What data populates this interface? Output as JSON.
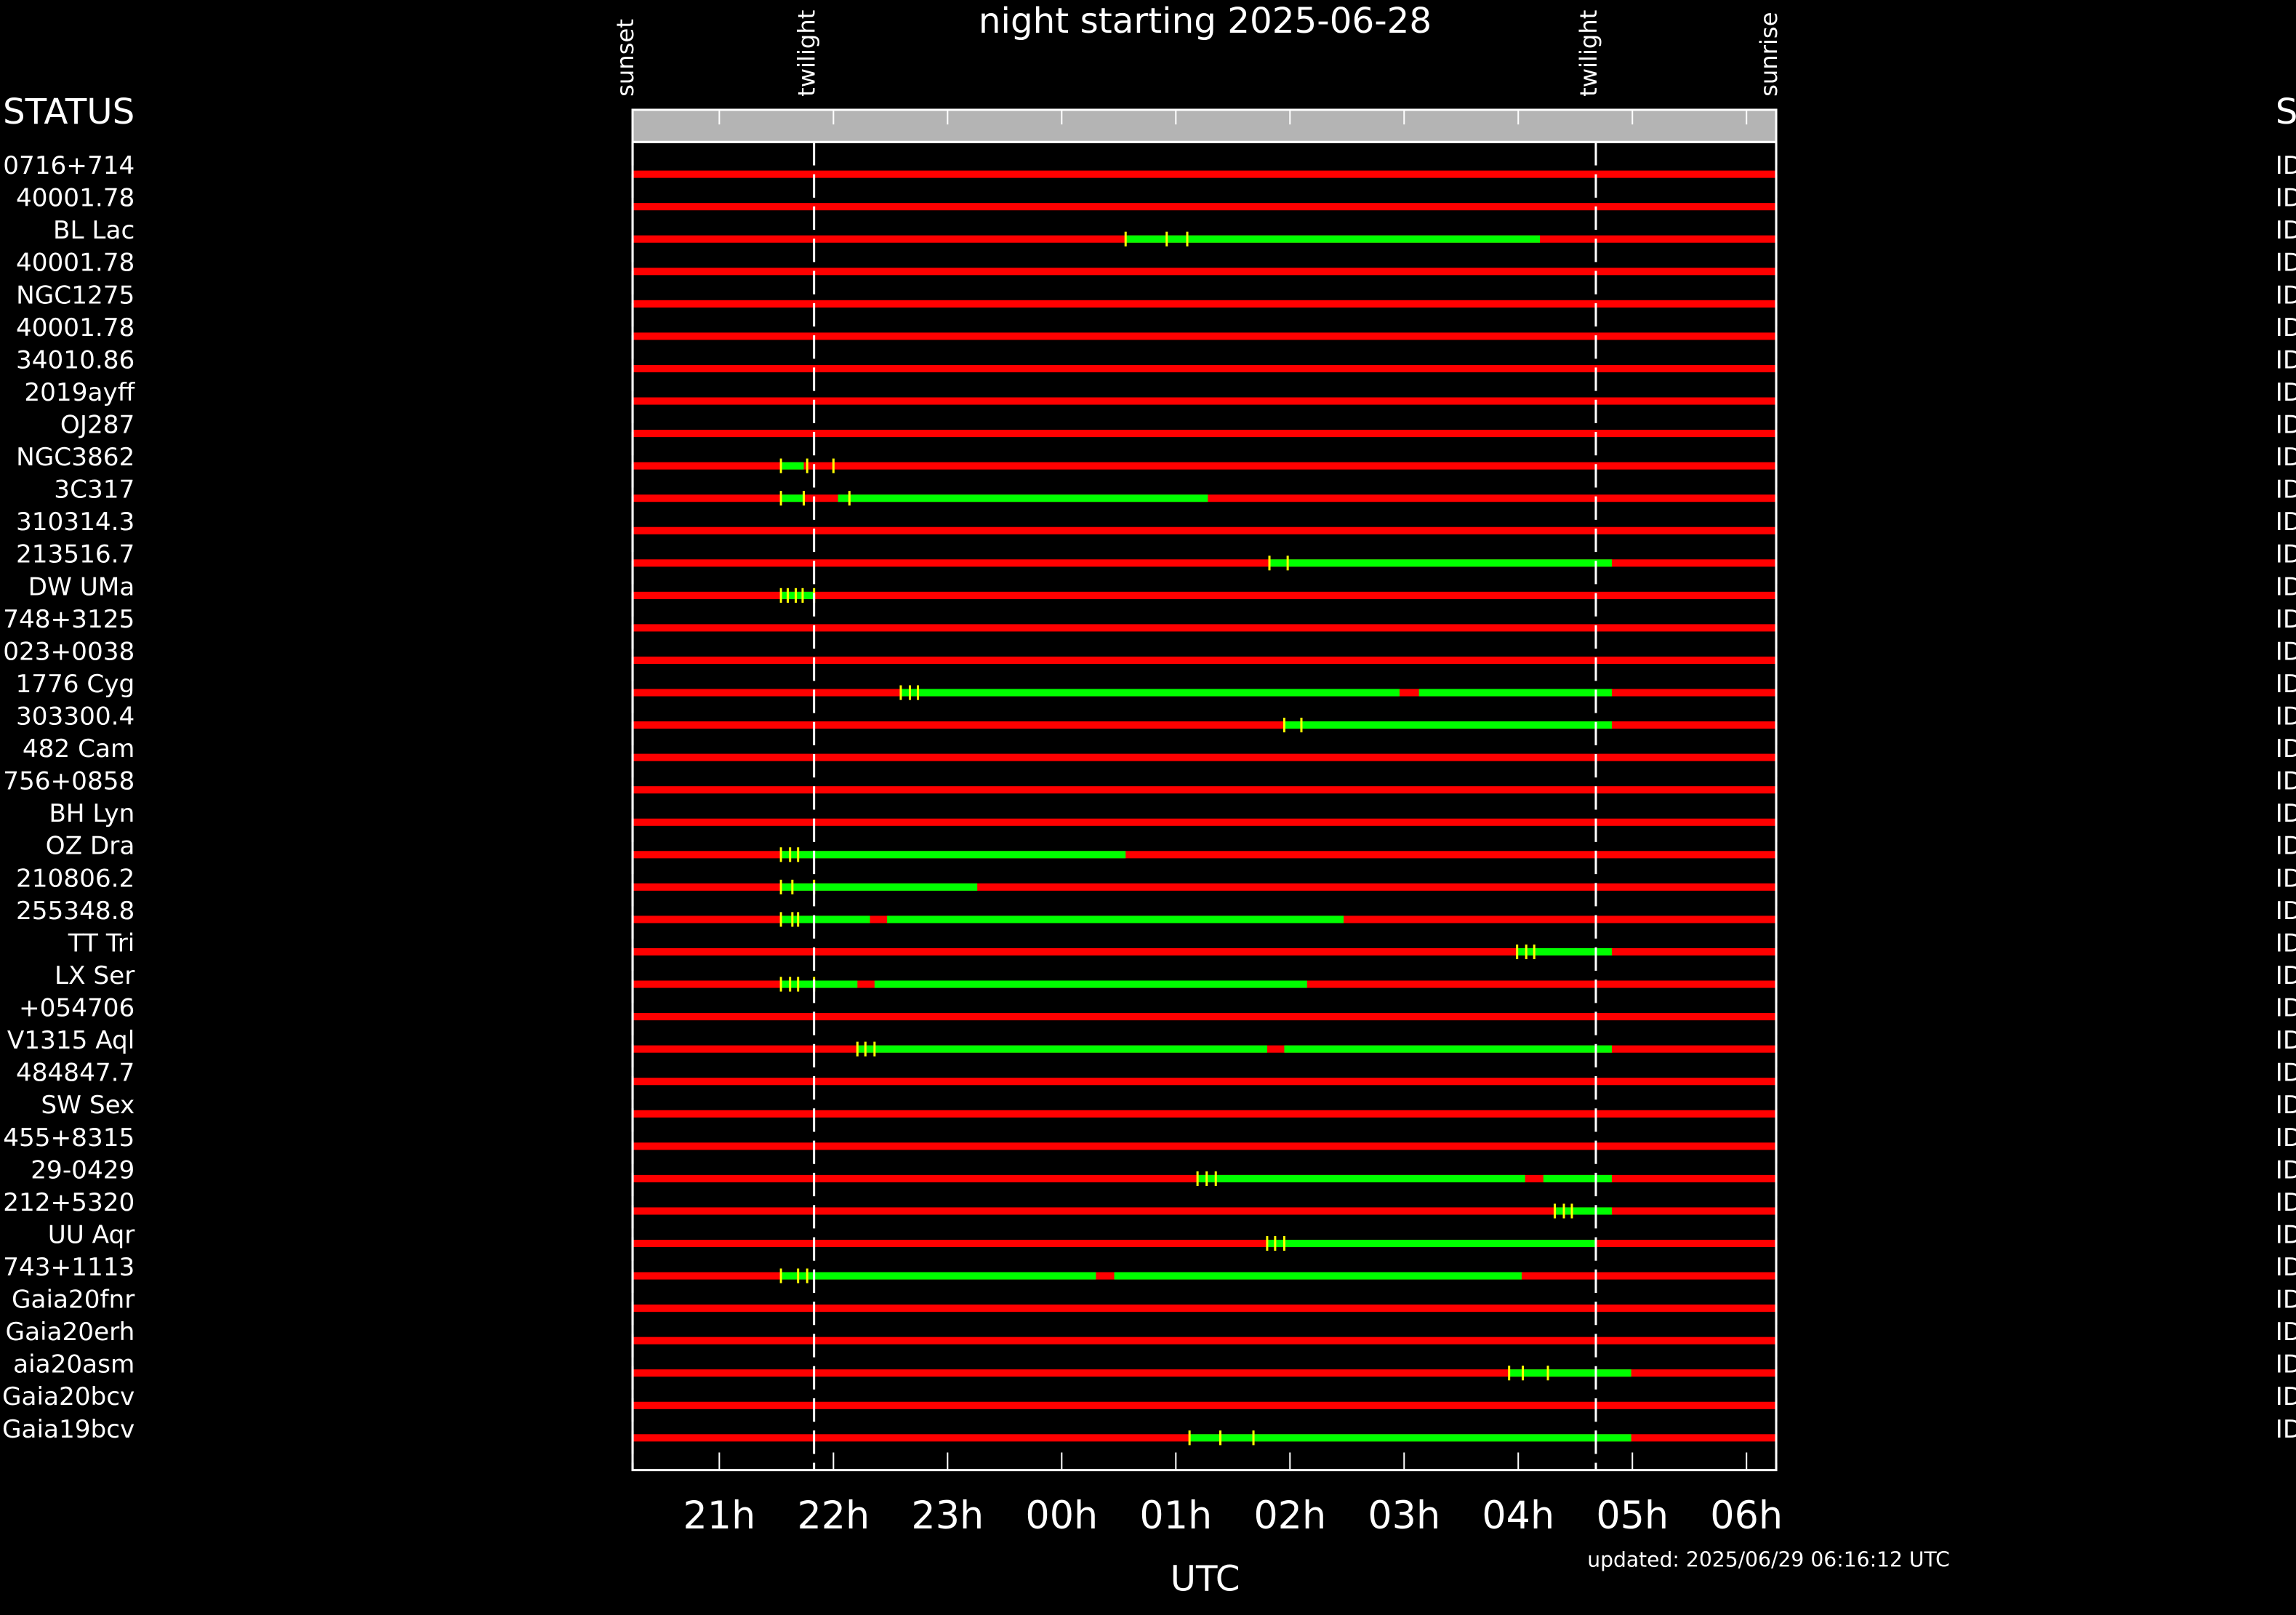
{
  "chart_data": {
    "type": "timeline",
    "title": "night starting 2025-06-28",
    "status_heading": "STATUS",
    "xlabel": "UTC",
    "footer": "updated: 2025/06/29 06:16:12 UTC",
    "xlim": [
      20.24,
      30.26
    ],
    "xticks": [
      {
        "value": 21,
        "label": "21h"
      },
      {
        "value": 22,
        "label": "22h"
      },
      {
        "value": 23,
        "label": "23h"
      },
      {
        "value": 24,
        "label": "00h"
      },
      {
        "value": 25,
        "label": "01h"
      },
      {
        "value": 26,
        "label": "02h"
      },
      {
        "value": 27,
        "label": "03h"
      },
      {
        "value": 28,
        "label": "04h"
      },
      {
        "value": 29,
        "label": "05h"
      },
      {
        "value": 30,
        "label": "06h"
      }
    ],
    "events": [
      {
        "label": "sunset",
        "value": 20.24
      },
      {
        "label": "twilight",
        "value": 21.83
      },
      {
        "label": "twilight",
        "value": 28.68
      },
      {
        "label": "sunrise",
        "value": 30.26
      }
    ],
    "colors": {
      "unavailable": "#ff0000",
      "visible": "#00ff00",
      "marker": "#ffff00",
      "band": "#b4b4b4"
    },
    "rows": [
      {
        "name": "0716+714",
        "status": "ID",
        "visible": [],
        "marks": []
      },
      {
        "name": "40001.78",
        "status": "ID",
        "visible": [],
        "marks": []
      },
      {
        "name": "BL Lac",
        "status": "ID",
        "visible": [
          [
            24.56,
            28.19
          ]
        ],
        "marks": [
          24.56,
          24.92,
          25.1
        ]
      },
      {
        "name": "40001.78",
        "status": "ID",
        "visible": [],
        "marks": []
      },
      {
        "name": "NGC1275",
        "status": "ID",
        "visible": [],
        "marks": []
      },
      {
        "name": "40001.78",
        "status": "ID",
        "visible": [],
        "marks": []
      },
      {
        "name": "34010.86",
        "status": "ID",
        "visible": [],
        "marks": []
      },
      {
        "name": "2019ayff",
        "status": "ID",
        "visible": [],
        "marks": []
      },
      {
        "name": "OJ287",
        "status": "ID",
        "visible": [],
        "marks": []
      },
      {
        "name": "NGC3862",
        "status": "ID",
        "visible": [
          [
            21.54,
            21.74
          ]
        ],
        "marks": [
          21.54,
          21.77,
          22.0
        ]
      },
      {
        "name": "3C317",
        "status": "ID",
        "visible": [
          [
            21.54,
            21.74
          ],
          [
            22.04,
            25.28
          ]
        ],
        "marks": [
          21.54,
          21.74,
          22.14
        ]
      },
      {
        "name": "310314.3",
        "status": "ID",
        "visible": [],
        "marks": []
      },
      {
        "name": "213516.7",
        "status": "ID",
        "visible": [
          [
            25.82,
            28.82
          ]
        ],
        "marks": [
          25.82,
          25.98
        ]
      },
      {
        "name": "DW UMa",
        "status": "ID",
        "visible": [
          [
            21.54,
            21.83
          ]
        ],
        "marks": [
          21.54,
          21.6,
          21.67,
          21.73,
          21.83
        ]
      },
      {
        "name": "748+3125",
        "status": "ID",
        "visible": [],
        "marks": []
      },
      {
        "name": "023+0038",
        "status": "ID",
        "visible": [],
        "marks": []
      },
      {
        "name": "1776 Cyg",
        "status": "ID",
        "visible": [
          [
            22.59,
            26.96
          ],
          [
            27.13,
            28.82
          ]
        ],
        "marks": [
          22.59,
          22.67,
          22.74
        ]
      },
      {
        "name": "303300.4",
        "status": "ID",
        "visible": [
          [
            25.95,
            28.82
          ]
        ],
        "marks": [
          25.95,
          26.1
        ]
      },
      {
        "name": "482 Cam",
        "status": "ID",
        "visible": [],
        "marks": []
      },
      {
        "name": "756+0858",
        "status": "ID",
        "visible": [],
        "marks": []
      },
      {
        "name": "BH Lyn",
        "status": "ID",
        "visible": [],
        "marks": []
      },
      {
        "name": "OZ Dra",
        "status": "ID",
        "visible": [
          [
            21.54,
            24.56
          ]
        ],
        "marks": [
          21.54,
          21.62,
          21.69
        ]
      },
      {
        "name": "210806.2",
        "status": "ID",
        "visible": [
          [
            21.54,
            23.26
          ]
        ],
        "marks": [
          21.54,
          21.64,
          21.83
        ]
      },
      {
        "name": "255348.8",
        "status": "ID",
        "visible": [
          [
            21.54,
            22.32
          ],
          [
            22.47,
            26.47
          ]
        ],
        "marks": [
          21.54,
          21.64,
          21.69
        ]
      },
      {
        "name": "TT Tri",
        "status": "ID",
        "visible": [
          [
            27.99,
            28.82
          ]
        ],
        "marks": [
          27.99,
          28.07,
          28.14
        ]
      },
      {
        "name": "LX Ser",
        "status": "ID",
        "visible": [
          [
            21.54,
            22.21
          ],
          [
            22.36,
            26.15
          ]
        ],
        "marks": [
          21.54,
          21.62,
          21.69,
          21.83
        ]
      },
      {
        "name": "+054706",
        "status": "ID",
        "visible": [],
        "marks": []
      },
      {
        "name": "V1315 Aql",
        "status": "ID",
        "visible": [
          [
            22.21,
            25.8
          ],
          [
            25.95,
            28.82
          ]
        ],
        "marks": [
          22.21,
          22.28,
          22.36
        ]
      },
      {
        "name": "484847.7",
        "status": "ID",
        "visible": [],
        "marks": []
      },
      {
        "name": "SW Sex",
        "status": "ID",
        "visible": [],
        "marks": []
      },
      {
        "name": "455+8315",
        "status": "ID",
        "visible": [],
        "marks": []
      },
      {
        "name": "29-0429",
        "status": "ID",
        "visible": [
          [
            25.19,
            28.06
          ],
          [
            28.22,
            28.82
          ]
        ],
        "marks": [
          25.19,
          25.27,
          25.35
        ]
      },
      {
        "name": "212+5320",
        "status": "ID",
        "visible": [
          [
            28.32,
            28.82
          ]
        ],
        "marks": [
          28.32,
          28.4,
          28.47
        ]
      },
      {
        "name": "UU Aqr",
        "status": "ID",
        "visible": [
          [
            25.8,
            28.68
          ]
        ],
        "marks": [
          25.8,
          25.87,
          25.95
        ]
      },
      {
        "name": "743+1113",
        "status": "ID",
        "visible": [
          [
            21.54,
            24.3
          ],
          [
            24.46,
            28.03
          ]
        ],
        "marks": [
          21.54,
          21.69,
          21.77
        ]
      },
      {
        "name": "Gaia20fnr",
        "status": "ID",
        "visible": [],
        "marks": []
      },
      {
        "name": "Gaia20erh",
        "status": "ID",
        "visible": [],
        "marks": []
      },
      {
        "name": "aia20asm",
        "status": "ID",
        "visible": [
          [
            27.92,
            28.99
          ]
        ],
        "marks": [
          27.92,
          28.04,
          28.26
        ]
      },
      {
        "name": "Gaia20bcv",
        "status": "ID",
        "visible": [],
        "marks": []
      },
      {
        "name": "Gaia19bcv",
        "status": "ID",
        "visible": [
          [
            25.12,
            28.99
          ]
        ],
        "marks": [
          25.12,
          25.39,
          25.68
        ]
      }
    ]
  }
}
